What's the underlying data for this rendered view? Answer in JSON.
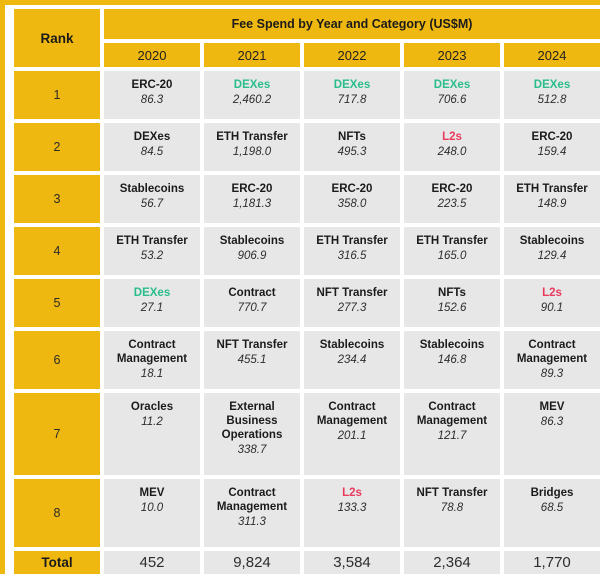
{
  "table": {
    "rank_header": "Rank",
    "title": "Fee Spend by Year and Category (US$M)",
    "years": [
      "2020",
      "2021",
      "2022",
      "2023",
      "2024"
    ],
    "rows": [
      {
        "rank": "1",
        "cells": [
          {
            "category": "ERC-20",
            "value": "86.3",
            "highlight": "none"
          },
          {
            "category": "DEXes",
            "value": "2,460.2",
            "highlight": "green"
          },
          {
            "category": "DEXes",
            "value": "717.8",
            "highlight": "green"
          },
          {
            "category": "DEXes",
            "value": "706.6",
            "highlight": "green"
          },
          {
            "category": "DEXes",
            "value": "512.8",
            "highlight": "green"
          }
        ]
      },
      {
        "rank": "2",
        "cells": [
          {
            "category": "DEXes",
            "value": "84.5",
            "highlight": "none"
          },
          {
            "category": "ETH Transfer",
            "value": "1,198.0",
            "highlight": "none"
          },
          {
            "category": "NFTs",
            "value": "495.3",
            "highlight": "none"
          },
          {
            "category": "L2s",
            "value": "248.0",
            "highlight": "red"
          },
          {
            "category": "ERC-20",
            "value": "159.4",
            "highlight": "none"
          }
        ]
      },
      {
        "rank": "3",
        "cells": [
          {
            "category": "Stablecoins",
            "value": "56.7",
            "highlight": "none"
          },
          {
            "category": "ERC-20",
            "value": "1,181.3",
            "highlight": "none"
          },
          {
            "category": "ERC-20",
            "value": "358.0",
            "highlight": "none"
          },
          {
            "category": "ERC-20",
            "value": "223.5",
            "highlight": "none"
          },
          {
            "category": "ETH Transfer",
            "value": "148.9",
            "highlight": "none"
          }
        ]
      },
      {
        "rank": "4",
        "cells": [
          {
            "category": "ETH Transfer",
            "value": "53.2",
            "highlight": "none"
          },
          {
            "category": "Stablecoins",
            "value": "906.9",
            "highlight": "none"
          },
          {
            "category": "ETH Transfer",
            "value": "316.5",
            "highlight": "none"
          },
          {
            "category": "ETH Transfer",
            "value": "165.0",
            "highlight": "none"
          },
          {
            "category": "Stablecoins",
            "value": "129.4",
            "highlight": "none"
          }
        ]
      },
      {
        "rank": "5",
        "cells": [
          {
            "category": "DEXes",
            "value": "27.1",
            "highlight": "green"
          },
          {
            "category": "Contract",
            "value": "770.7",
            "highlight": "none"
          },
          {
            "category": "NFT Transfer",
            "value": "277.3",
            "highlight": "none"
          },
          {
            "category": "NFTs",
            "value": "152.6",
            "highlight": "none"
          },
          {
            "category": "L2s",
            "value": "90.1",
            "highlight": "red"
          }
        ]
      },
      {
        "rank": "6",
        "cells": [
          {
            "category": "Contract Management",
            "value": "18.1",
            "highlight": "none"
          },
          {
            "category": "NFT Transfer",
            "value": "455.1",
            "highlight": "none"
          },
          {
            "category": "Stablecoins",
            "value": "234.4",
            "highlight": "none"
          },
          {
            "category": "Stablecoins",
            "value": "146.8",
            "highlight": "none"
          },
          {
            "category": "Contract Management",
            "value": "89.3",
            "highlight": "none"
          }
        ]
      },
      {
        "rank": "7",
        "cells": [
          {
            "category": "Oracles",
            "value": "11.2",
            "highlight": "none"
          },
          {
            "category": "External Business Operations",
            "value": "338.7",
            "highlight": "none"
          },
          {
            "category": "Contract Management",
            "value": "201.1",
            "highlight": "none"
          },
          {
            "category": "Contract Management",
            "value": "121.7",
            "highlight": "none"
          },
          {
            "category": "MEV",
            "value": "86.3",
            "highlight": "none"
          }
        ]
      },
      {
        "rank": "8",
        "cells": [
          {
            "category": "MEV",
            "value": "10.0",
            "highlight": "none"
          },
          {
            "category": "Contract Management",
            "value": "311.3",
            "highlight": "none"
          },
          {
            "category": "L2s",
            "value": "133.3",
            "highlight": "red"
          },
          {
            "category": "NFT Transfer",
            "value": "78.8",
            "highlight": "none"
          },
          {
            "category": "Bridges",
            "value": "68.5",
            "highlight": "none"
          }
        ]
      }
    ],
    "total_label": "Total",
    "totals": [
      "452",
      "9,824",
      "3,584",
      "2,364",
      "1,770"
    ]
  },
  "colors": {
    "gold": "#EFB810",
    "cell_background": "#E7E7E8",
    "highlight_green": "#2ABE8C",
    "highlight_red": "#EA3A5D"
  },
  "chart_data": {
    "type": "table",
    "title": "Fee Spend by Year and Category (US$M)",
    "columns": [
      "Rank",
      "2020",
      "2021",
      "2022",
      "2023",
      "2024"
    ],
    "rows": [
      [
        "1",
        "ERC-20: 86.3",
        "DEXes: 2,460.2",
        "DEXes: 717.8",
        "DEXes: 706.6",
        "DEXes: 512.8"
      ],
      [
        "2",
        "DEXes: 84.5",
        "ETH Transfer: 1,198.0",
        "NFTs: 495.3",
        "L2s: 248.0",
        "ERC-20: 159.4"
      ],
      [
        "3",
        "Stablecoins: 56.7",
        "ERC-20: 1,181.3",
        "ERC-20: 358.0",
        "ERC-20: 223.5",
        "ETH Transfer: 148.9"
      ],
      [
        "4",
        "ETH Transfer: 53.2",
        "Stablecoins: 906.9",
        "ETH Transfer: 316.5",
        "ETH Transfer: 165.0",
        "Stablecoins: 129.4"
      ],
      [
        "5",
        "DEXes: 27.1",
        "Contract: 770.7",
        "NFT Transfer: 277.3",
        "NFTs: 152.6",
        "L2s: 90.1"
      ],
      [
        "6",
        "Contract Management: 18.1",
        "NFT Transfer: 455.1",
        "Stablecoins: 234.4",
        "Stablecoins: 146.8",
        "Contract Management: 89.3"
      ],
      [
        "7",
        "Oracles: 11.2",
        "External Business Operations: 338.7",
        "Contract Management: 201.1",
        "Contract Management: 121.7",
        "MEV: 86.3"
      ],
      [
        "8",
        "MEV: 10.0",
        "Contract Management: 311.3",
        "L2s: 133.3",
        "NFT Transfer: 78.8",
        "Bridges: 68.5"
      ],
      [
        "Total",
        "452",
        "9,824",
        "3,584",
        "2,364",
        "1,770"
      ]
    ],
    "legend": {
      "green_text": "DEXes highlighted in green",
      "red_text": "L2s highlighted in red"
    }
  }
}
